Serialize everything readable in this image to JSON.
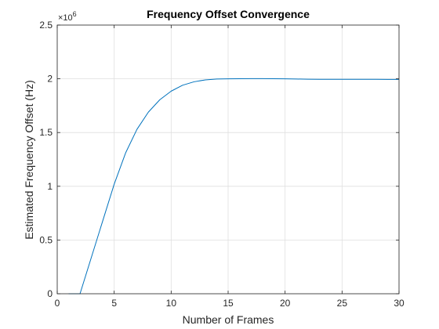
{
  "chart_data": {
    "type": "line",
    "title": "Frequency Offset Convergence",
    "xlabel": "Number of Frames",
    "ylabel": "Estimated Frequency Offset (Hz)",
    "y_exponent_label": "×10",
    "y_exponent_power": "6",
    "xlim": [
      0,
      30
    ],
    "ylim": [
      0,
      2500000
    ],
    "xticks": [
      0,
      5,
      10,
      15,
      20,
      25,
      30
    ],
    "xtick_labels": [
      "0",
      "5",
      "10",
      "15",
      "20",
      "25",
      "30"
    ],
    "yticks": [
      0,
      500000,
      1000000,
      1500000,
      2000000,
      2500000
    ],
    "ytick_labels": [
      "0",
      "0.5",
      "1",
      "1.5",
      "2",
      "2.5"
    ],
    "grid": true,
    "series": [
      {
        "color": "#0072bd",
        "x": [
          1,
          2,
          3,
          4,
          5,
          6,
          7,
          8,
          9,
          10,
          11,
          12,
          13,
          14,
          15,
          16,
          17,
          18,
          19,
          20,
          21,
          22,
          23,
          24,
          25,
          26,
          27,
          28,
          29,
          30
        ],
        "y": [
          0,
          0,
          340000,
          680000,
          1020000,
          1310000,
          1530000,
          1690000,
          1805000,
          1885000,
          1940000,
          1972000,
          1990000,
          1998000,
          2000000,
          2001000,
          2002000,
          2002000,
          2001000,
          2000000,
          1998000,
          1996000,
          1995000,
          1995000,
          1995000,
          1995000,
          1995000,
          1995000,
          1994000,
          1994000
        ]
      }
    ]
  }
}
